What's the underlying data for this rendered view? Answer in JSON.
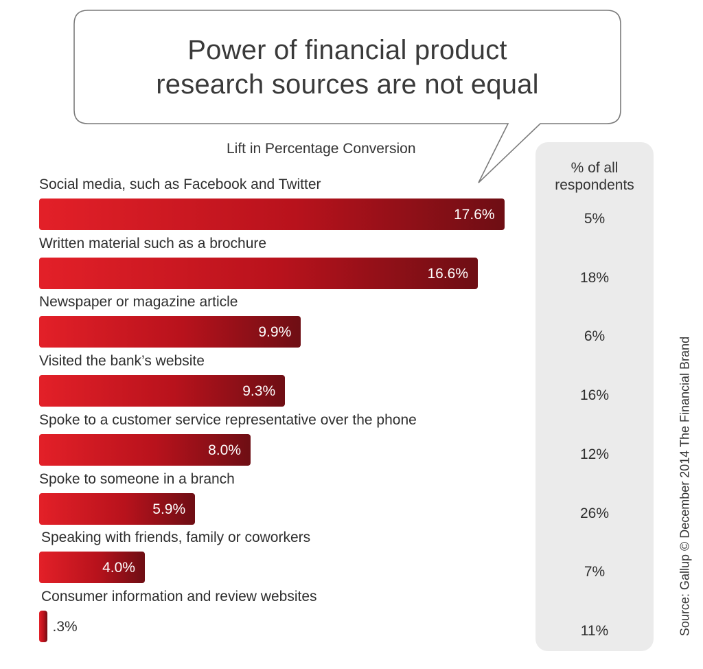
{
  "title_lines": [
    "Power of financial product",
    "research sources are not equal"
  ],
  "subtitle": "Lift in Percentage Conversion",
  "respondents_header_lines": [
    "% of all",
    "respondents"
  ],
  "source": "Source: Gallup © December 2014 The Financial Brand",
  "colors": {
    "bar_light": "#e32028",
    "bar_dark": "#6e0e14",
    "panel": "#ebebeb"
  },
  "chart_data": {
    "type": "bar",
    "orientation": "horizontal",
    "title": "Power of financial product research sources are not equal",
    "xlabel": "Lift in Percentage Conversion",
    "categories": [
      "Social media, such as Facebook and Twitter",
      "Written material such as a brochure",
      "Newspaper or magazine article",
      "Visited the bank’s website",
      "Spoke to a customer service representative over the phone",
      "Spoke to someone in a branch",
      "Speaking with friends, family or coworkers",
      "Consumer information and review websites"
    ],
    "series": [
      {
        "name": "Lift in Percentage Conversion",
        "values": [
          17.6,
          16.6,
          9.9,
          9.3,
          8.0,
          5.9,
          4.0,
          0.3
        ]
      },
      {
        "name": "% of all respondents",
        "values": [
          5,
          18,
          6,
          16,
          12,
          26,
          7,
          11
        ]
      }
    ],
    "value_labels": [
      "17.6%",
      "16.6%",
      "9.9%",
      "9.3%",
      "8.0%",
      "5.9%",
      "4.0%",
      ".3%"
    ],
    "respondent_labels": [
      "5%",
      "18%",
      "6%",
      "16%",
      "12%",
      "26%",
      "7%",
      "11%"
    ],
    "grid": false,
    "legend": "none"
  }
}
